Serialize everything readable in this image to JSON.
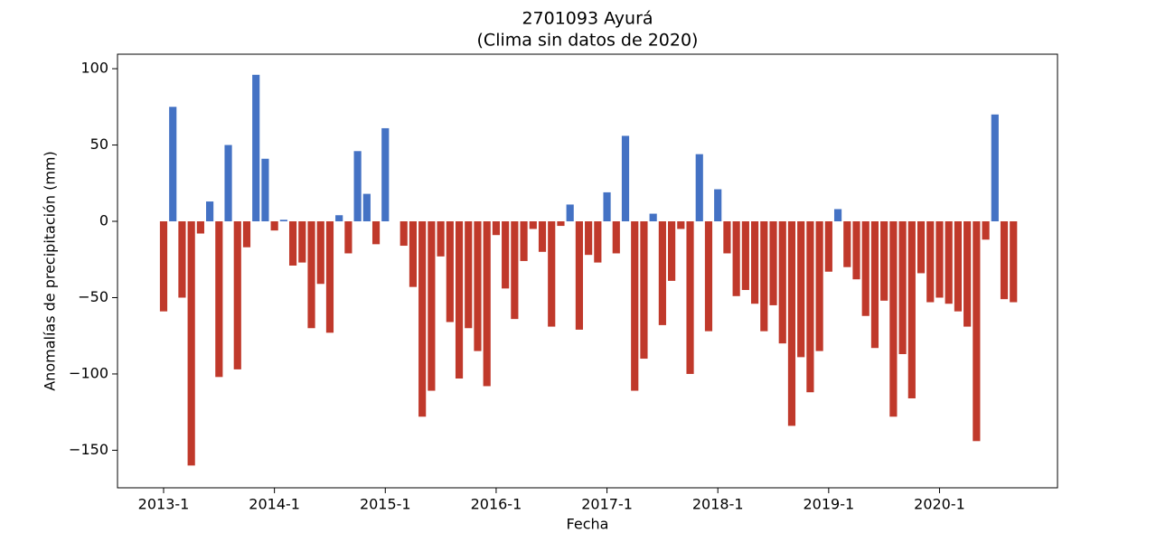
{
  "chart_data": {
    "type": "bar",
    "title": "2701093 Ayurá",
    "subtitle": "(Clima sin datos de 2020)",
    "x_label": "Fecha",
    "y_label": "Anomalías de precipitación (mm)",
    "categories": [
      "2013-1",
      null,
      null,
      null,
      null,
      null,
      null,
      null,
      null,
      null,
      null,
      null,
      "2014-1",
      null,
      null,
      null,
      null,
      null,
      null,
      null,
      null,
      null,
      null,
      null,
      "2015-1",
      null,
      null,
      null,
      null,
      null,
      null,
      null,
      null,
      null,
      null,
      null,
      "2016-1",
      null,
      null,
      null,
      null,
      null,
      null,
      null,
      null,
      null,
      null,
      null,
      "2017-1",
      null,
      null,
      null,
      null,
      null,
      null,
      null,
      null,
      null,
      null,
      null,
      "2018-1",
      null,
      null,
      null,
      null,
      null,
      null,
      null,
      null,
      null,
      null,
      null,
      "2019-1",
      null,
      null,
      null,
      null,
      null,
      null,
      null,
      null,
      null,
      null,
      null,
      "2020-1",
      null,
      null,
      null,
      null,
      null,
      null,
      null,
      null
    ],
    "values": [
      -59,
      75,
      -50,
      -160,
      -8,
      13,
      -102,
      50,
      -97,
      -17,
      96,
      41,
      -6,
      1,
      -29,
      -27,
      -70,
      -41,
      -73,
      4,
      -21,
      46,
      18,
      -15,
      61,
      null,
      -16,
      -43,
      -128,
      -111,
      -23,
      -66,
      -103,
      -70,
      -85,
      -108,
      -9,
      -44,
      -64,
      -26,
      -5,
      -20,
      -69,
      -3,
      11,
      -71,
      -22,
      -27,
      19,
      -21,
      56,
      -111,
      -90,
      5,
      -68,
      -39,
      -5,
      -100,
      44,
      -72,
      21,
      -21,
      -49,
      -45,
      -54,
      -72,
      -55,
      -80,
      -134,
      -89,
      -112,
      -85,
      -33,
      8,
      -30,
      -38,
      -62,
      -83,
      -52,
      -128,
      -87,
      -116,
      -34,
      -53,
      -50,
      -54,
      -59,
      -69,
      -144,
      -12,
      70,
      -51,
      -53
    ],
    "positive_color": "#4472c4",
    "negative_color": "#c0392b",
    "ylim": [
      -174.6,
      109.5
    ],
    "yticks": [
      {
        "value": -150,
        "label": "−150"
      },
      {
        "value": -100,
        "label": "−100"
      },
      {
        "value": -50,
        "label": "−50"
      },
      0,
      50,
      100
    ],
    "grid": false
  }
}
